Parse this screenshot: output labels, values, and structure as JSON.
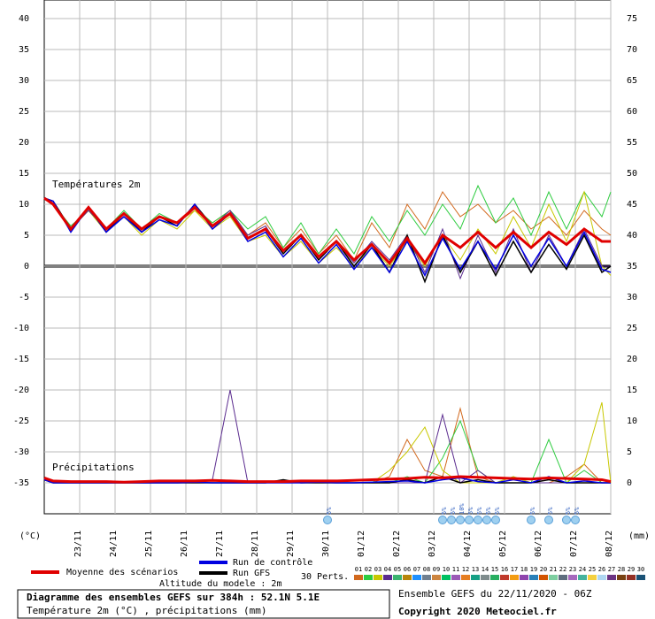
{
  "chart_data": {
    "type": "line",
    "title": "Diagramme des ensembles GEFS sur 384h : 52.1N 5.1E",
    "subtitle": "Température 2m (°C) , précipitations (mm)",
    "annotations": {
      "temp_label": "Températures 2m",
      "precip_label": "Précipitations",
      "y_unit": "(°C)",
      "y2_unit": "(mm)",
      "altitude": "Altitude du modele : 2m",
      "perts": "30 Perts.",
      "run": "Ensemble GEFS du 22/11/2020 - 06Z",
      "copyright": "Copyright 2020 Meteociel.fr"
    },
    "x": [
      0,
      6,
      18,
      30,
      42,
      54,
      66,
      78,
      90,
      102,
      114,
      126,
      138,
      150,
      162,
      174,
      186,
      198,
      210,
      222,
      234,
      246,
      258,
      270,
      282,
      294,
      306,
      318,
      330,
      342,
      354,
      366,
      378,
      384
    ],
    "xlim": [
      0,
      384
    ],
    "xticks": [
      {
        "value": 24,
        "label": "23/11"
      },
      {
        "value": 48,
        "label": "24/11"
      },
      {
        "value": 72,
        "label": "25/11"
      },
      {
        "value": 96,
        "label": "26/11"
      },
      {
        "value": 120,
        "label": "27/11"
      },
      {
        "value": 144,
        "label": "28/11"
      },
      {
        "value": 168,
        "label": "29/11"
      },
      {
        "value": 192,
        "label": "30/11"
      },
      {
        "value": 216,
        "label": "01/12"
      },
      {
        "value": 240,
        "label": "02/12"
      },
      {
        "value": 264,
        "label": "03/12"
      },
      {
        "value": 288,
        "label": "04/12"
      },
      {
        "value": 312,
        "label": "05/12"
      },
      {
        "value": 336,
        "label": "06/12"
      },
      {
        "value": 360,
        "label": "07/12"
      },
      {
        "value": 384,
        "label": "08/12"
      }
    ],
    "ylim": [
      -40,
      43
    ],
    "yticks": [
      40,
      35,
      30,
      25,
      20,
      15,
      10,
      5,
      0,
      -5,
      -10,
      -15,
      -20,
      -25,
      -30,
      -35
    ],
    "y2lim": [
      -5,
      78
    ],
    "y2ticks": [
      75,
      70,
      65,
      60,
      55,
      50,
      45,
      40,
      35,
      30,
      25,
      20,
      15,
      10,
      5,
      0
    ],
    "grid": true,
    "series": [
      {
        "name": "Moyenne des scénarios",
        "color": "#e00000",
        "values": [
          11,
          10,
          6,
          9.5,
          6,
          8.5,
          6,
          8,
          7,
          9.5,
          6.5,
          8.5,
          4.5,
          6,
          2.5,
          5,
          1.5,
          4,
          1,
          3.5,
          0.5,
          4.5,
          0.5,
          5,
          3,
          5.5,
          3,
          5.5,
          3,
          5.5,
          3.5,
          6,
          4,
          4
        ],
        "precip": [
          0.8,
          0.3,
          0.2,
          0.2,
          0.2,
          0.1,
          0.2,
          0.3,
          0.3,
          0.3,
          0.4,
          0.3,
          0.2,
          0.2,
          0.2,
          0.3,
          0.3,
          0.3,
          0.4,
          0.5,
          0.6,
          0.7,
          0.9,
          0.8,
          1,
          0.9,
          0.8,
          0.7,
          0.6,
          0.8,
          0.7,
          0.6,
          0.5,
          0.2
        ]
      },
      {
        "name": "Run de contrôle",
        "color": "#0000e0",
        "values": [
          11,
          10.5,
          5.5,
          9.5,
          5.5,
          8,
          5.5,
          7.5,
          6.5,
          10,
          6,
          8.5,
          4,
          5.5,
          1.5,
          4.5,
          0.5,
          3.5,
          -0.5,
          3,
          -1,
          4,
          -1.5,
          4.5,
          -0.5,
          4,
          -0.5,
          5,
          0,
          4.5,
          0,
          5.5,
          -0.5,
          -1
        ],
        "precip": [
          0.5,
          0,
          0,
          0,
          0,
          0,
          0,
          0,
          0,
          0.1,
          0,
          0,
          0,
          0,
          0,
          0,
          0.1,
          0,
          0,
          0.1,
          0.2,
          0.3,
          0,
          0.5,
          0.8,
          0.2,
          0,
          0.5,
          0,
          1,
          0,
          0.3,
          0,
          0
        ]
      },
      {
        "name": "Run GFS",
        "color": "#000000",
        "values": [
          11,
          10.5,
          6,
          9.5,
          5.5,
          8.5,
          5.5,
          8,
          6.5,
          10,
          6.5,
          8.5,
          4.5,
          6,
          2,
          5,
          1,
          4,
          0,
          3.5,
          -1,
          5,
          -2.5,
          5,
          -1,
          4,
          -1.5,
          4,
          -1,
          3.5,
          -0.5,
          5,
          -1,
          0
        ],
        "precip": [
          0.5,
          0,
          0,
          0,
          0,
          0,
          0,
          0,
          0,
          0,
          0,
          0,
          0,
          0,
          0.5,
          0,
          0,
          0,
          0,
          0,
          0,
          0.5,
          0,
          1,
          0,
          0.5,
          0,
          0,
          0,
          0.5,
          0,
          0,
          0,
          0
        ]
      }
    ],
    "members": [
      {
        "name": "01",
        "color": "#d2691e",
        "values": [
          11,
          10,
          6,
          9,
          6,
          8,
          6,
          8,
          7,
          9,
          7,
          9,
          5,
          7,
          3,
          6,
          2,
          5,
          1,
          7,
          3,
          10,
          6,
          12,
          8,
          10,
          7,
          9,
          6,
          8,
          5,
          9,
          6,
          5
        ],
        "precip": [
          0.5,
          0,
          0,
          0,
          0,
          0,
          0,
          0,
          0,
          0,
          0,
          0,
          0,
          0,
          0,
          0,
          0,
          0,
          0,
          0,
          1,
          7,
          2,
          1,
          12,
          1,
          0,
          0,
          0,
          0,
          1,
          3,
          0,
          0
        ]
      },
      {
        "name": "02",
        "color": "#2ecc40",
        "values": [
          11,
          10,
          6.5,
          9,
          6,
          9,
          6,
          8.5,
          7,
          9.5,
          7,
          9,
          6,
          8,
          3,
          7,
          2,
          6,
          2,
          8,
          4,
          9,
          5,
          10,
          6,
          13,
          7,
          11,
          5,
          12,
          6,
          12,
          8,
          12
        ],
        "precip": [
          0.5,
          0,
          0,
          0,
          0,
          0,
          0,
          0,
          0,
          0,
          0,
          0,
          0,
          0,
          0,
          0,
          0,
          0,
          0,
          0,
          0,
          1,
          0,
          4,
          10,
          2,
          0,
          1,
          0,
          7,
          0,
          2,
          0,
          0
        ]
      },
      {
        "name": "03",
        "color": "#c8c800",
        "values": [
          11,
          10,
          6,
          9,
          5.5,
          8,
          5,
          7.5,
          6,
          9,
          6,
          8,
          4,
          5,
          1.5,
          4,
          0.5,
          3,
          0,
          3,
          0,
          4,
          0,
          5,
          1,
          6,
          2,
          8,
          3,
          10,
          4,
          12,
          0,
          -1.5
        ],
        "precip": [
          0.5,
          0,
          0,
          0,
          0,
          0,
          0,
          0,
          0,
          0,
          0,
          0,
          0,
          0,
          0,
          0,
          0,
          0,
          0,
          0,
          2,
          5,
          9,
          2,
          0,
          0,
          0,
          1,
          0,
          0,
          0,
          3,
          13,
          0
        ]
      },
      {
        "name": "04",
        "color": "#5b2c8f",
        "values": [
          11,
          10,
          6,
          9,
          6,
          8.5,
          6,
          8,
          7,
          9.5,
          6.5,
          9,
          5,
          6.5,
          2,
          5,
          1,
          4,
          0.5,
          4,
          1,
          5,
          -1,
          6,
          -2,
          5,
          -1,
          6,
          -1,
          5,
          0,
          6,
          0,
          0
        ],
        "precip": [
          0.5,
          0,
          0,
          0,
          0,
          0,
          0,
          0,
          0,
          0.2,
          0.5,
          15,
          0,
          0,
          0,
          0,
          0,
          0,
          0,
          0,
          0,
          0,
          0,
          11,
          0,
          2,
          0,
          0,
          0,
          0,
          0,
          0,
          0,
          0
        ]
      },
      {
        "name": "05",
        "color": "#3cb371"
      },
      {
        "name": "06",
        "color": "#b8860b"
      },
      {
        "name": "07",
        "color": "#1e90ff"
      },
      {
        "name": "08",
        "color": "#708090"
      },
      {
        "name": "09",
        "color": "#cd853f"
      },
      {
        "name": "10",
        "color": "#00c060"
      },
      {
        "name": "11",
        "color": "#9b59b6"
      },
      {
        "name": "12",
        "color": "#e67e22"
      },
      {
        "name": "13",
        "color": "#16a085"
      },
      {
        "name": "14",
        "color": "#7f8c8d"
      },
      {
        "name": "15",
        "color": "#27ae60"
      },
      {
        "name": "16",
        "color": "#c0392b"
      },
      {
        "name": "17",
        "color": "#f39c12"
      },
      {
        "name": "18",
        "color": "#8e44ad"
      },
      {
        "name": "19",
        "color": "#2980b9"
      },
      {
        "name": "20",
        "color": "#d35400"
      },
      {
        "name": "21",
        "color": "#7dcea0"
      },
      {
        "name": "22",
        "color": "#5d6d7e"
      },
      {
        "name": "23",
        "color": "#a569bd"
      },
      {
        "name": "24",
        "color": "#45b39d"
      },
      {
        "name": "25",
        "color": "#f4d03f"
      },
      {
        "name": "26",
        "color": "#aed6f1"
      },
      {
        "name": "27",
        "color": "#6c3483"
      },
      {
        "name": "28",
        "color": "#784212"
      },
      {
        "name": "29",
        "color": "#943126"
      },
      {
        "name": "30",
        "color": "#1a5276"
      }
    ],
    "snow": {
      "x": [
        192,
        270,
        276,
        282,
        288,
        294,
        300,
        306,
        330,
        342,
        354,
        360
      ],
      "values": [
        5,
        5,
        5,
        10,
        5,
        5,
        5,
        5,
        5,
        5,
        5,
        5
      ],
      "value_labels": [
        "5%",
        "5%",
        "5%",
        "10%",
        "5%",
        "5%",
        "5%",
        "5%",
        "5%",
        "5%",
        "5%",
        "5%"
      ]
    }
  }
}
